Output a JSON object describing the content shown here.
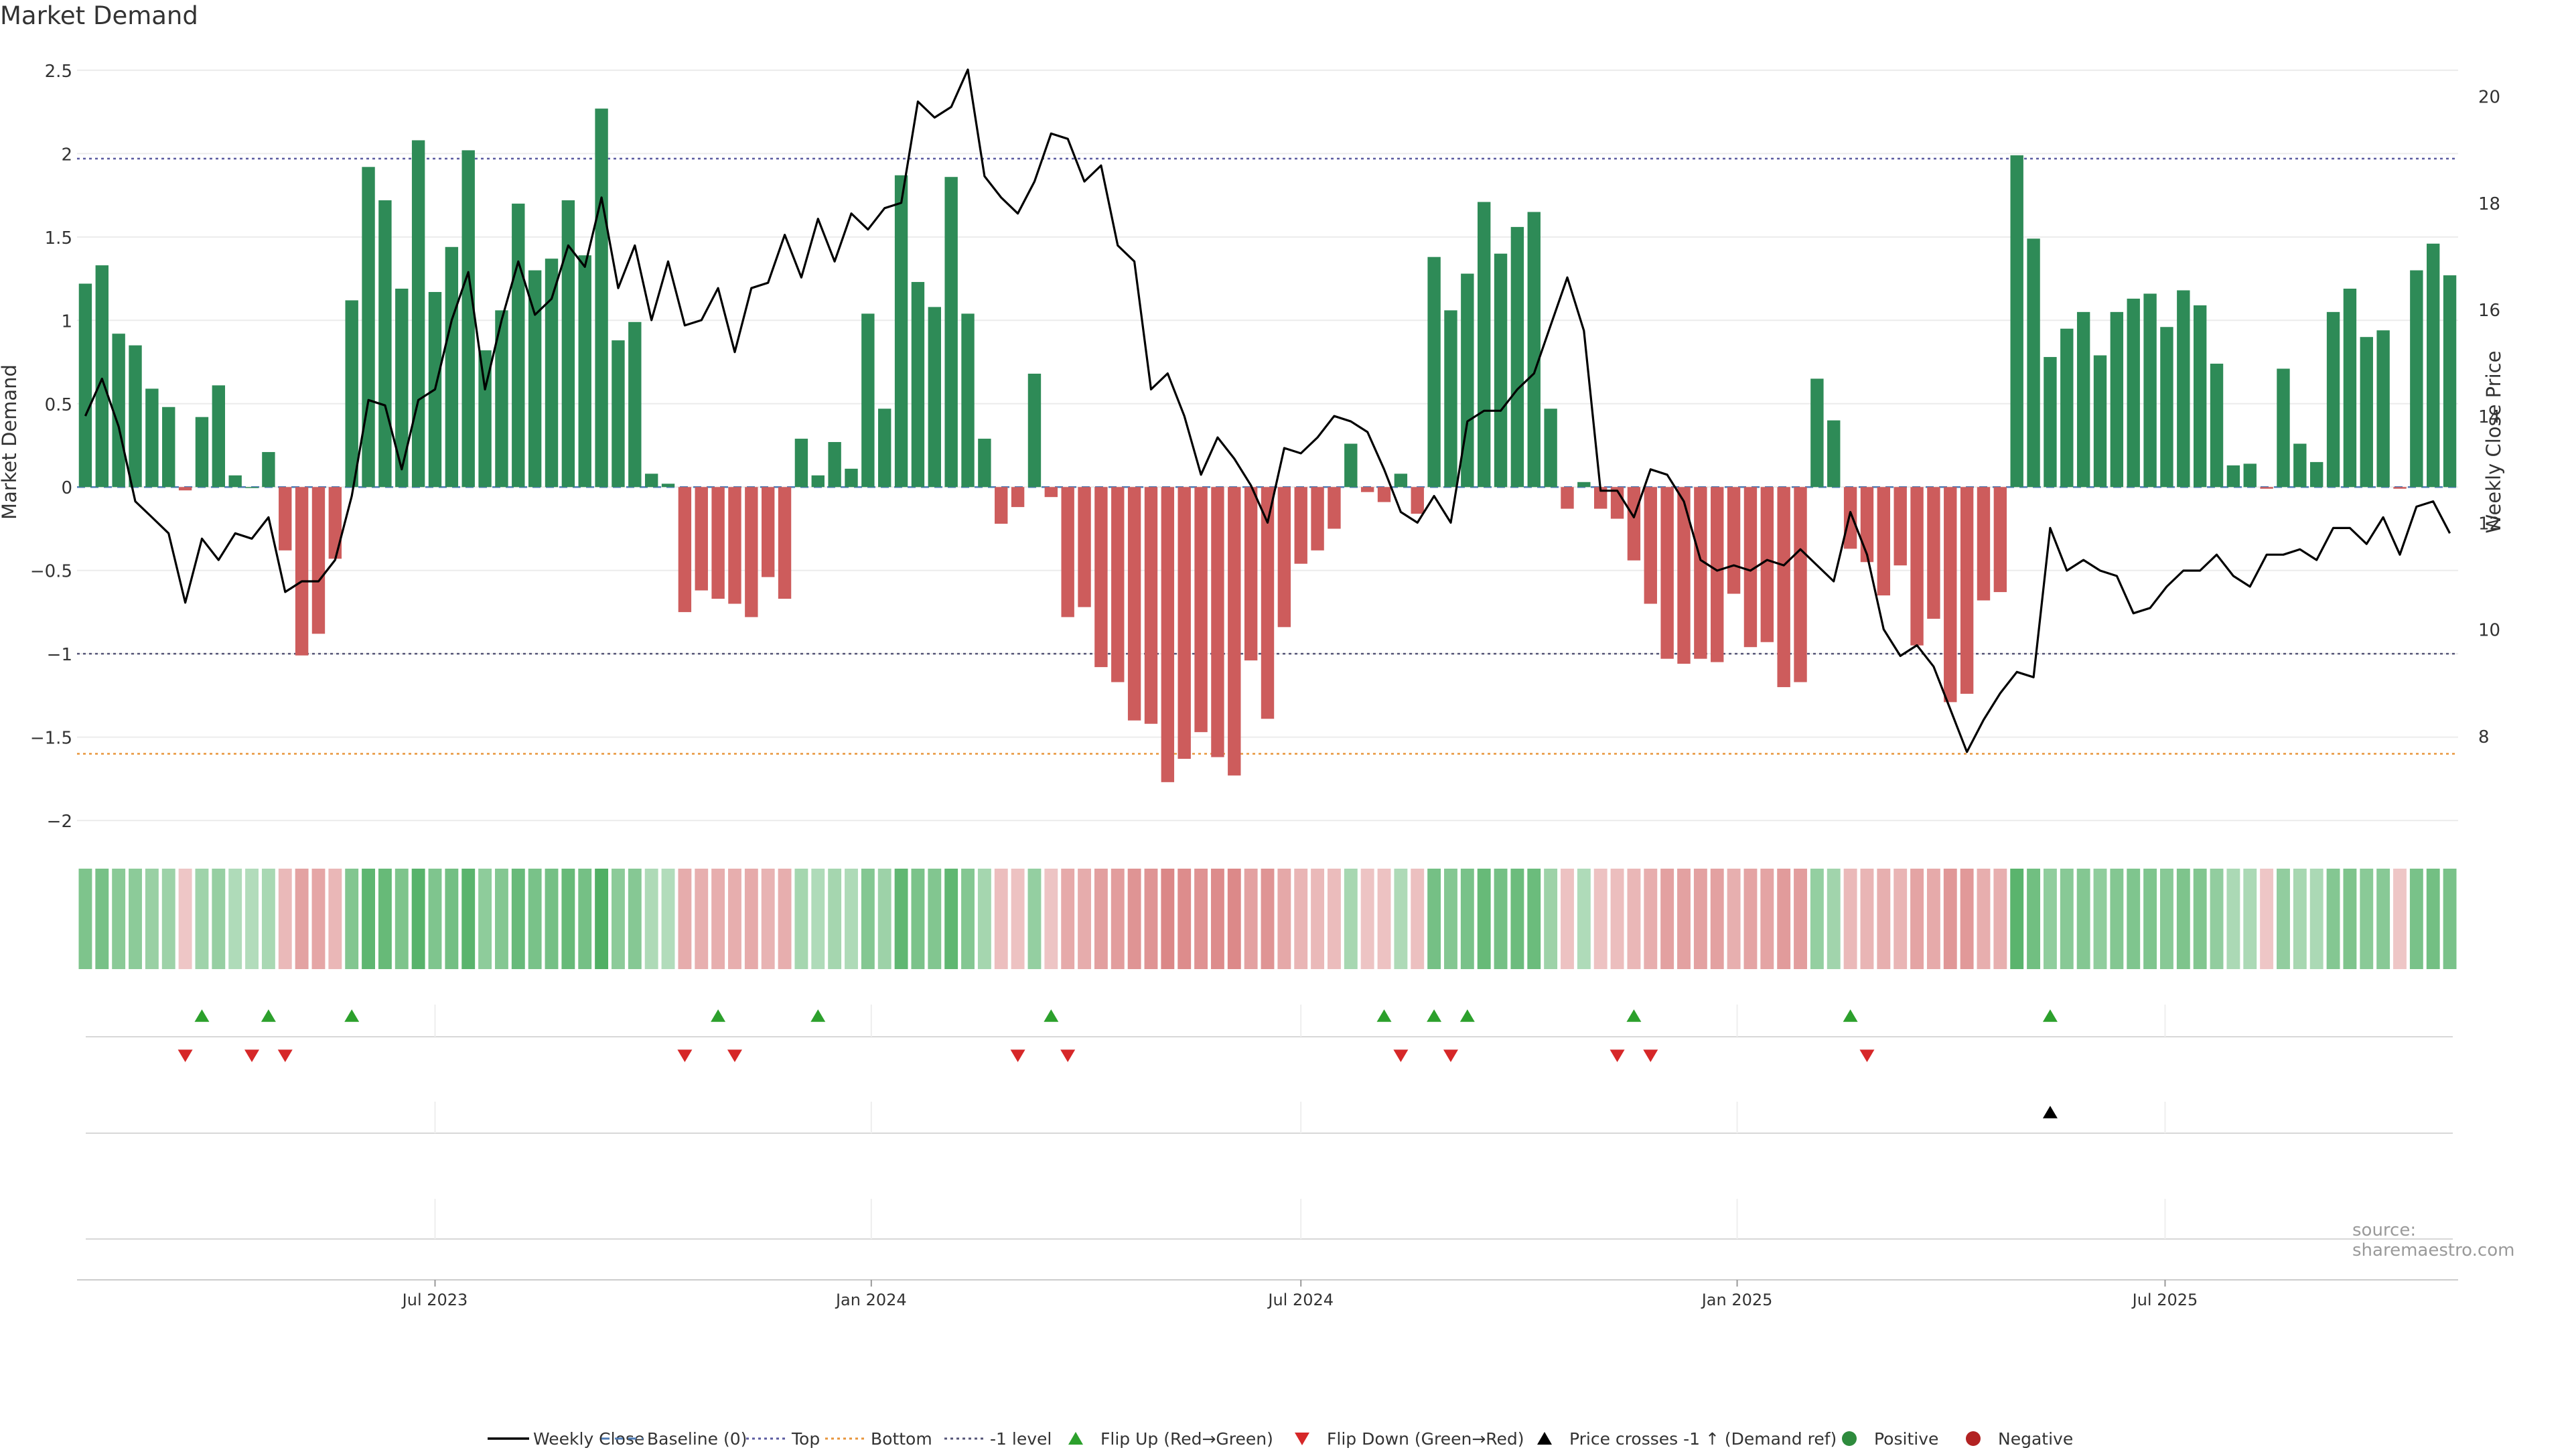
{
  "chart_data": {
    "type": "bar",
    "title": "Market Demand",
    "ylabel": "Market Demand",
    "y2label": "Weekly Close Price",
    "ylim": [
      -2.1,
      2.6
    ],
    "y2lim": [
      6.1,
      20.8
    ],
    "yticks": [
      "2.5",
      "2",
      "1.5",
      "1",
      "0.5",
      "0",
      "−0.5",
      "−1",
      "−1.5",
      "−2"
    ],
    "yticks_values": [
      2.5,
      2,
      1.5,
      1,
      0.5,
      0,
      -0.5,
      -1,
      -1.5,
      -2
    ],
    "y2ticks": [
      "20",
      "18",
      "16",
      "14",
      "12",
      "10",
      "8"
    ],
    "y2ticks_values": [
      20,
      18,
      16,
      14,
      12,
      10,
      8
    ],
    "xticks": [
      "Jul 2023",
      "Jan 2024",
      "Jul 2024",
      "Jan 2025",
      "Jul 2025"
    ],
    "xticks_weeks": [
      21.5,
      47.7,
      73.5,
      99.7,
      125.4
    ],
    "x_first_week": "Feb 2023 (weekly)",
    "levels": {
      "top": 1.97,
      "bottom": -1.6,
      "minus_one": -1.0,
      "baseline": 0
    },
    "demand": [
      1.22,
      1.33,
      0.92,
      0.85,
      0.59,
      0.48,
      -0.02,
      0.42,
      0.61,
      0.07,
      0,
      0.21,
      -0.38,
      -1.01,
      -0.88,
      -0.43,
      1.12,
      1.92,
      1.72,
      1.19,
      2.08,
      1.17,
      1.44,
      2.02,
      0.82,
      1.06,
      1.7,
      1.3,
      1.37,
      1.72,
      1.39,
      2.27,
      0.88,
      0.99,
      0.08,
      0.02,
      -0.75,
      -0.62,
      -0.67,
      -0.7,
      -0.78,
      -0.54,
      -0.67,
      0.29,
      0.07,
      0.27,
      0.11,
      1.04,
      0.47,
      1.87,
      1.23,
      1.08,
      1.86,
      1.04,
      0.29,
      -0.22,
      -0.12,
      0.68,
      -0.06,
      -0.78,
      -0.72,
      -1.08,
      -1.17,
      -1.4,
      -1.42,
      -1.77,
      -1.63,
      -1.47,
      -1.62,
      -1.73,
      -1.04,
      -1.39,
      -0.84,
      -0.46,
      -0.38,
      -0.25,
      0.26,
      -0.03,
      -0.09,
      0.08,
      -0.16,
      1.38,
      1.06,
      1.28,
      1.71,
      1.4,
      1.56,
      1.65,
      0.47,
      -0.13,
      0.03,
      -0.13,
      -0.19,
      -0.44,
      -0.7,
      -1.03,
      -1.06,
      -1.03,
      -1.05,
      -0.64,
      -0.96,
      -0.93,
      -1.2,
      -1.17,
      0.65,
      0.4,
      -0.37,
      -0.45,
      -0.65,
      -0.47,
      -0.95,
      -0.79,
      -1.29,
      -1.24,
      -0.68,
      -0.63,
      1.99,
      1.49,
      0.78,
      0.95,
      1.05,
      0.79,
      1.05,
      1.13,
      1.16,
      0.96,
      1.18,
      1.09,
      0.74,
      0.13,
      0.14,
      -0.01,
      0.71,
      0.26,
      0.15,
      1.05,
      1.19,
      0.9,
      0.94,
      -0.01,
      1.3,
      1.46,
      1.27
    ],
    "series": [
      {
        "name": "Weekly Close",
        "values": [
          14.0,
          14.7,
          13.8,
          12.4,
          12.1,
          11.8,
          10.5,
          11.7,
          11.3,
          11.8,
          11.7,
          12.1,
          10.7,
          10.9,
          10.9,
          11.3,
          12.5,
          14.3,
          14.2,
          13.0,
          14.3,
          14.5,
          15.8,
          16.7,
          14.5,
          15.8,
          16.9,
          15.9,
          16.2,
          17.2,
          16.8,
          18.1,
          16.4,
          17.2,
          15.8,
          16.9,
          15.7,
          15.8,
          16.4,
          15.2,
          16.4,
          16.5,
          17.4,
          16.6,
          17.7,
          16.9,
          17.8,
          17.5,
          17.9,
          18.0,
          19.9,
          19.6,
          19.8,
          20.5,
          18.5,
          18.1,
          17.8,
          18.4,
          19.3,
          19.2,
          18.4,
          18.7,
          17.2,
          16.9,
          14.5,
          14.8,
          14.0,
          12.9,
          13.6,
          13.2,
          12.7,
          12.0,
          13.4,
          13.3,
          13.6,
          14.0,
          13.9,
          13.7,
          13.0,
          12.2,
          12.0,
          12.5,
          12.0,
          13.9,
          14.1,
          14.1,
          14.5,
          14.8,
          15.7,
          16.6,
          15.6,
          12.6,
          12.6,
          12.1,
          13.0,
          12.9,
          12.4,
          11.3,
          11.1,
          11.2,
          11.1,
          11.3,
          11.2,
          11.5,
          11.2,
          10.9,
          12.2,
          11.4,
          10.0,
          9.5,
          9.7,
          9.3,
          8.5,
          7.7,
          8.3,
          8.8,
          9.2,
          9.1,
          11.9,
          11.1,
          11.3,
          11.1,
          11.0,
          10.3,
          10.4,
          10.8,
          11.1,
          11.1,
          11.4,
          11.0,
          10.8,
          11.4,
          11.4,
          11.5,
          11.3,
          11.9,
          11.9,
          11.6,
          12.1,
          11.4,
          12.3,
          12.4,
          11.8
        ]
      }
    ],
    "flip_up_weeks": [
      7,
      11,
      16,
      38,
      44,
      58,
      78,
      81,
      83,
      93,
      106,
      118
    ],
    "flip_down_weeks": [
      6,
      10,
      12,
      36,
      39,
      56,
      59,
      79,
      82,
      92,
      94,
      107
    ],
    "price_cross_weeks": [
      118
    ],
    "legend": [
      {
        "label": "Weekly Close",
        "kind": "line",
        "color": "#000000"
      },
      {
        "label": "Baseline (0)",
        "kind": "dash",
        "color": "#4e7bb5"
      },
      {
        "label": "Top",
        "kind": "dot",
        "color": "#5a5aa0"
      },
      {
        "label": "Bottom",
        "kind": "dot",
        "color": "#e8963c"
      },
      {
        "label": "-1 level",
        "kind": "dot",
        "color": "#555577"
      },
      {
        "label": "Flip Up (Red→Green)",
        "kind": "tri-up",
        "color": "#2ca02c"
      },
      {
        "label": "Flip Down (Green→Red)",
        "kind": "tri-down",
        "color": "#d62728"
      },
      {
        "label": "Price crosses -1 ↑ (Demand ref)",
        "kind": "tri-up",
        "color": "#000000"
      },
      {
        "label": "Positive",
        "kind": "circle",
        "color": "#2e8b3d"
      },
      {
        "label": "Negative",
        "kind": "circle",
        "color": "#b22222"
      }
    ],
    "colors": {
      "positive": "#2e8b57",
      "negative": "#cd5c5c",
      "line": "#000000"
    }
  },
  "source": "source: sharemaestro.com"
}
